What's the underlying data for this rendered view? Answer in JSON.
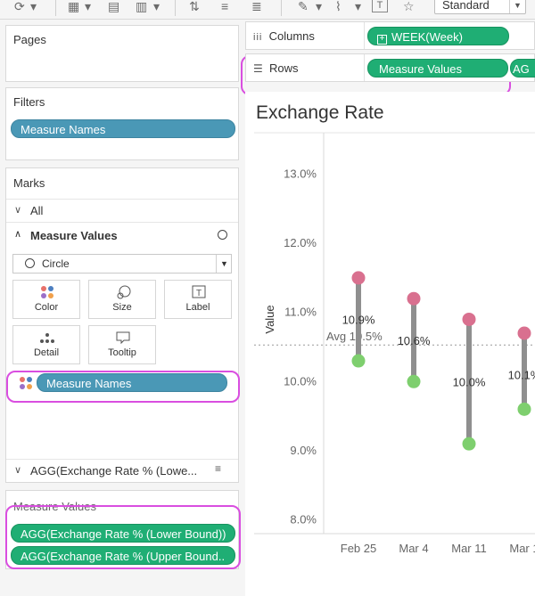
{
  "toolbar": {
    "view_size": "Standard"
  },
  "left_panel": {
    "pages": {
      "title": "Pages"
    },
    "filters": {
      "title": "Filters",
      "pills": [
        "Measure Names"
      ]
    },
    "marks": {
      "title": "Marks",
      "all_label": "All",
      "measure_values_label": "Measure Values",
      "mark_type": "Circle",
      "buttons": [
        {
          "label": "Color",
          "icon": "color-dots-icon"
        },
        {
          "label": "Size",
          "icon": "size-icon"
        },
        {
          "label": "Label",
          "icon": "label-icon"
        },
        {
          "label": "Detail",
          "icon": "detail-icon"
        },
        {
          "label": "Tooltip",
          "icon": "tooltip-icon"
        }
      ],
      "color_field": "Measure Names",
      "agg_row_label": "AGG(Exchange Rate % (Lowe..."
    },
    "measure_values_card": {
      "title": "Measure Values",
      "pills": [
        "AGG(Exchange Rate % (Lower Bound))",
        "AGG(Exchange Rate % (Upper Bound.."
      ]
    }
  },
  "shelves": {
    "columns_label": "Columns",
    "columns_pills": [
      "WEEK(Week)"
    ],
    "rows_label": "Rows",
    "rows_pills": [
      "Measure Values",
      "AG"
    ]
  },
  "view": {
    "title": "Exchange Rate"
  },
  "chart_data": {
    "type": "scatter",
    "ylabel": "Value",
    "ylim": [
      7.8,
      13.6
    ],
    "y_ticks": [
      "13.0%",
      "12.0%",
      "11.0%",
      "10.0%",
      "9.0%",
      "8.0%"
    ],
    "y_tick_values": [
      13,
      12,
      11,
      10,
      9,
      8
    ],
    "categories": [
      "Feb 25",
      "Mar 4",
      "Mar 11",
      "Mar 1"
    ],
    "series": [
      {
        "name": "AGG(Exchange Rate % (Upper Bound))",
        "values": [
          11.5,
          11.2,
          10.9,
          10.7
        ],
        "color": "#d9708f"
      },
      {
        "name": "AGG(Exchange Rate % (Lower Bound))",
        "values": [
          10.3,
          10.0,
          9.1,
          9.6
        ],
        "color": "#7ecf6e"
      }
    ],
    "data_labels": [
      "10.9%",
      "10.6%",
      "10.0%",
      "10.1%"
    ],
    "data_label_values": [
      10.9,
      10.6,
      10.0,
      10.1
    ],
    "reference_line": {
      "label": "Avg 10.5%",
      "value": 10.53
    },
    "connector_color": "#8f8f8f"
  }
}
